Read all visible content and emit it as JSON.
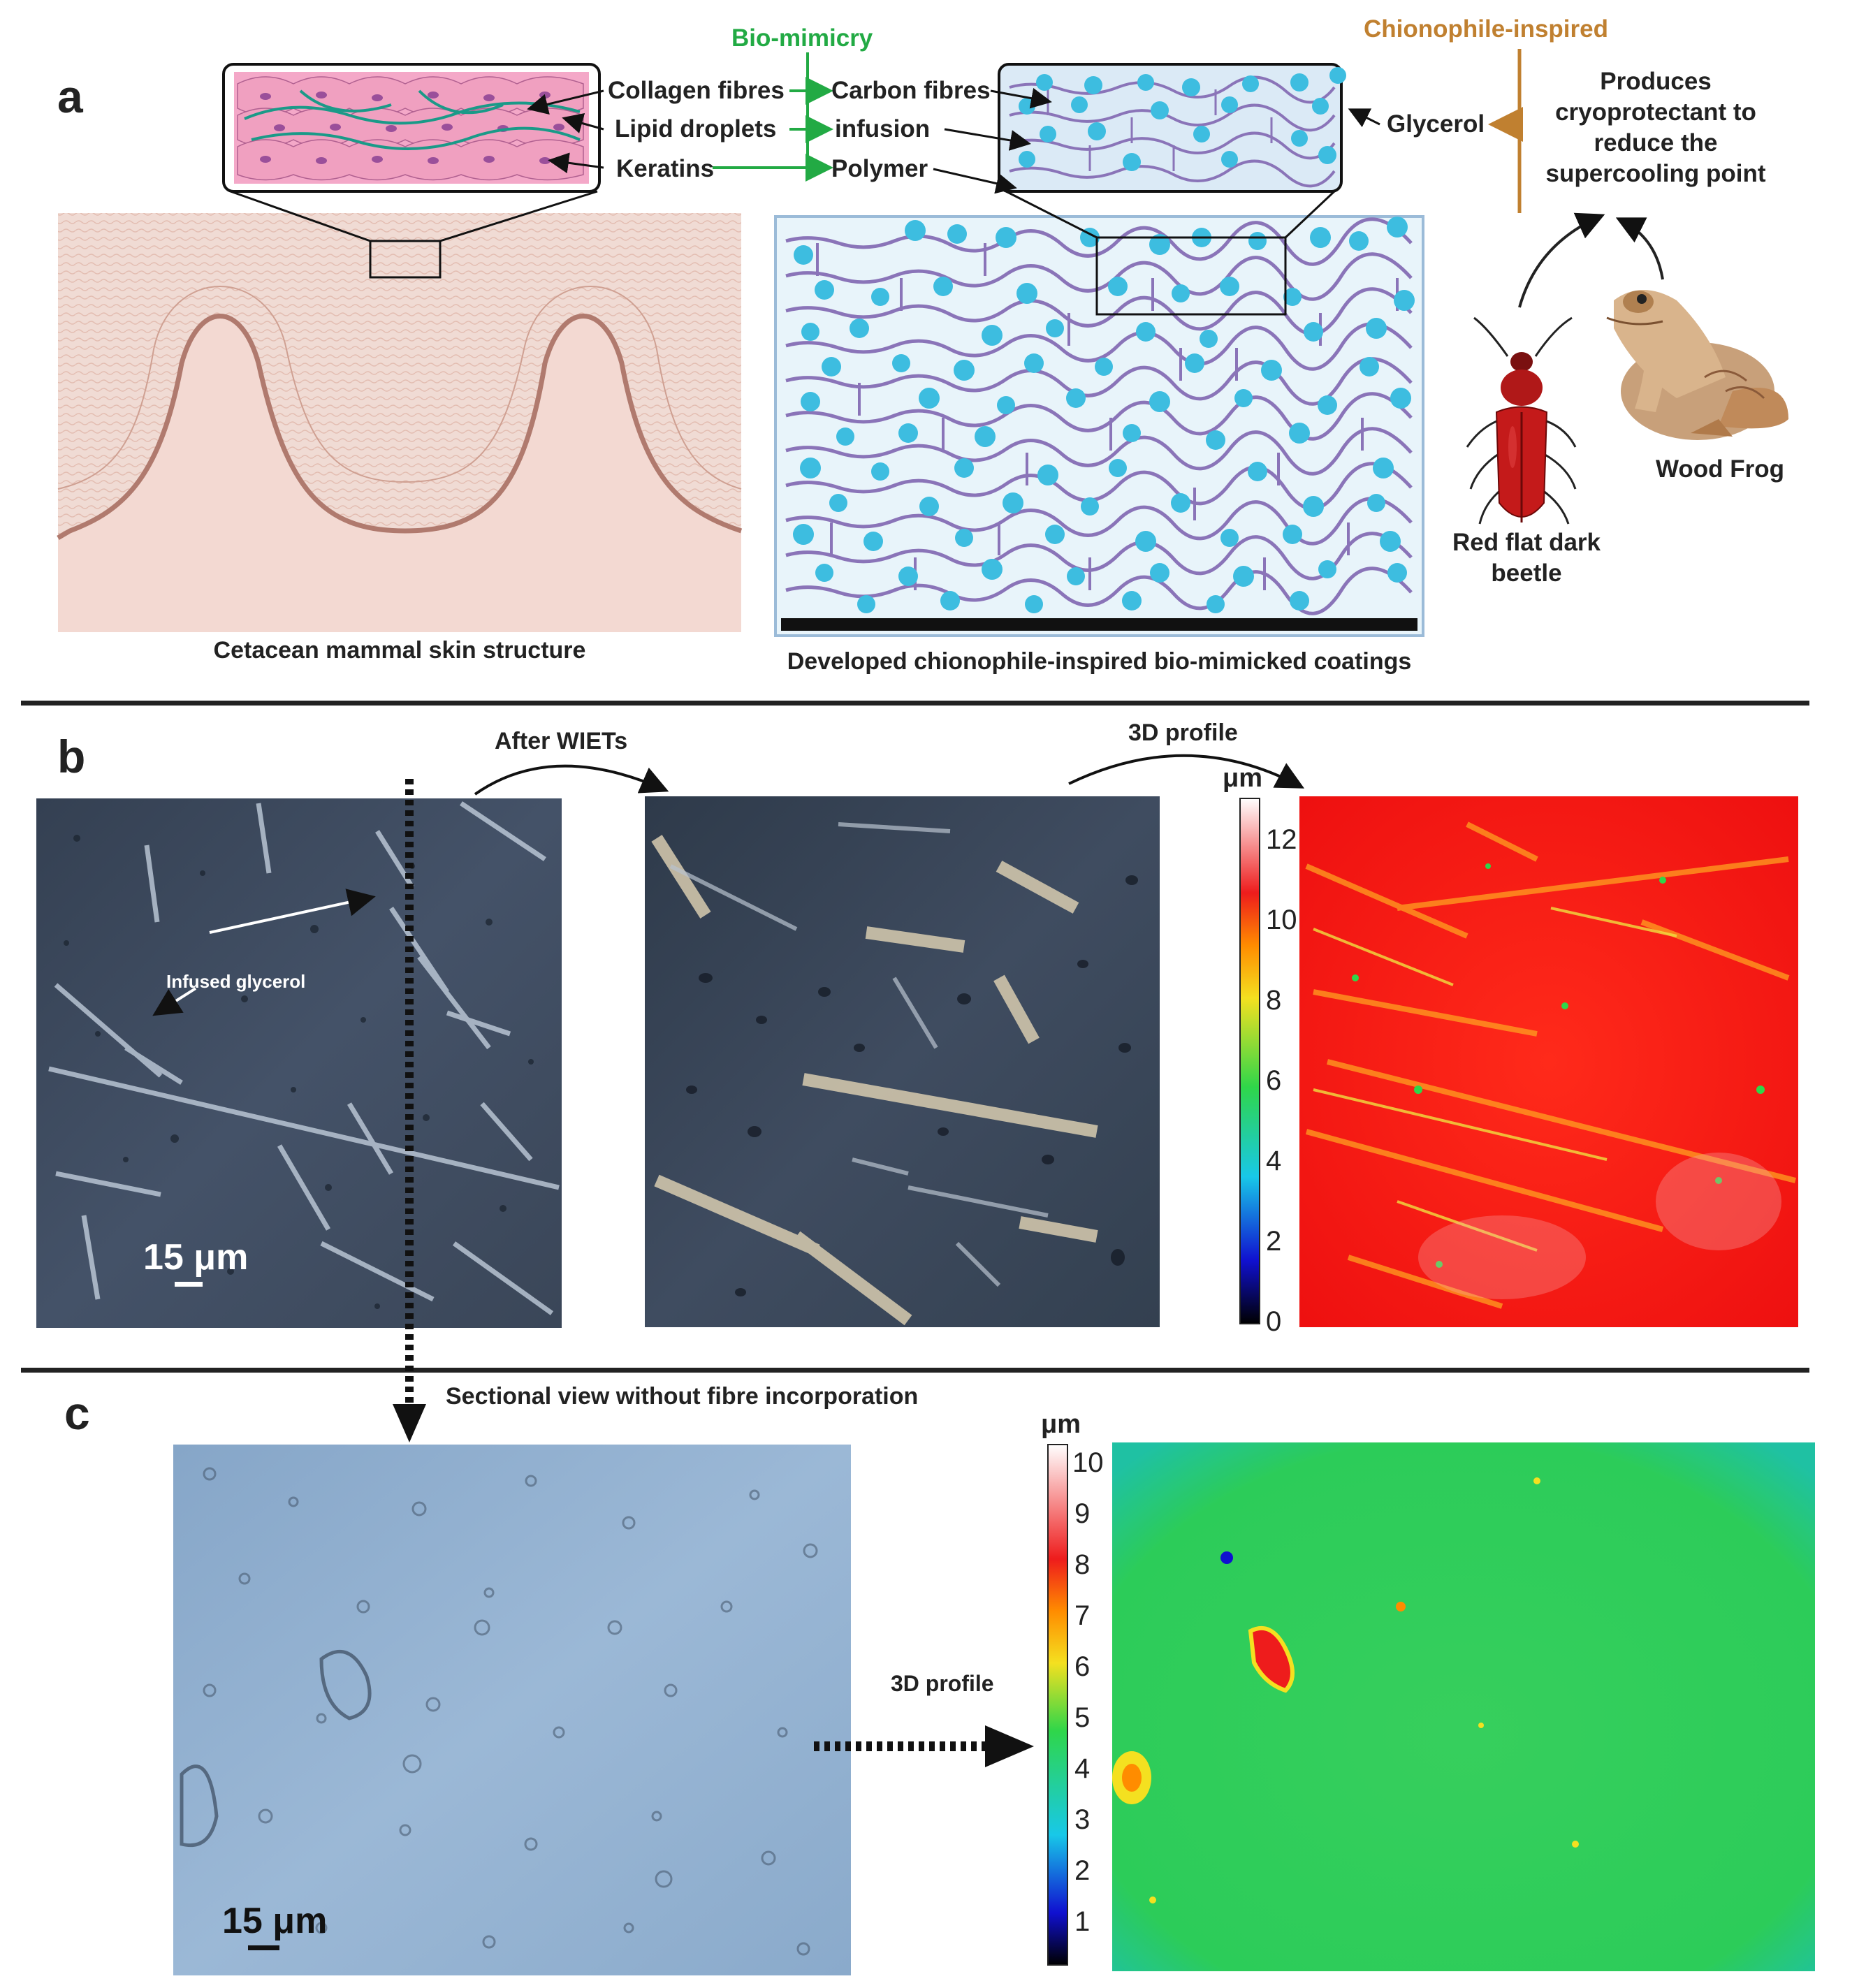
{
  "panels": {
    "a": "a",
    "b": "b",
    "c": "c"
  },
  "panel_a": {
    "bio_mimicry_title": "Bio-mimicry",
    "chionophile_title": "Chionophile-inspired",
    "skin_labels": [
      "Collagen fibres",
      "Lipid droplets",
      "Keratins"
    ],
    "coating_labels": [
      "Carbon fibres",
      "infusion",
      "Polymer"
    ],
    "glycerol_label": "Glycerol",
    "cryo_text": [
      "Produces",
      "cryoprotectant to",
      "reduce the",
      "supercooling point"
    ],
    "beetle_label": [
      "Red flat dark",
      "beetle"
    ],
    "frog_label": "Wood Frog",
    "skin_caption": "Cetacean mammal skin structure",
    "coating_caption": "Developed chionophile-inspired bio-mimicked coatings"
  },
  "panel_b": {
    "after_wiets": "After WIETs",
    "profile_3d": "3D profile",
    "infused_glycerol": "Infused glycerol",
    "scale_bar": "15 μm",
    "colorbar_unit": "μm",
    "colorbar_ticks": [
      "12",
      "10",
      "8",
      "6",
      "4",
      "2",
      "0"
    ]
  },
  "panel_c": {
    "sectional_view": "Sectional view without fibre incorporation",
    "profile_3d": "3D profile",
    "scale_bar": "15 μm",
    "colorbar_unit": "μm",
    "colorbar_ticks": [
      "10",
      "9",
      "8",
      "7",
      "6",
      "5",
      "4",
      "3",
      "2",
      "1"
    ]
  },
  "colors": {
    "bio_green": "#22aa44",
    "chionophile_orange": "#c08030",
    "skin_pink": "#e8c7bd",
    "skin_dark": "#b07a6e",
    "droplet_cyan": "#3dbde0",
    "fibre_purple": "#8a74b8",
    "coating_bg": "#e8f4fa",
    "micro_dark": "#3e4b5c",
    "micro_light": "#8fb0d0",
    "map_red": "#ee1c1c",
    "map_green": "#2fd64a"
  }
}
